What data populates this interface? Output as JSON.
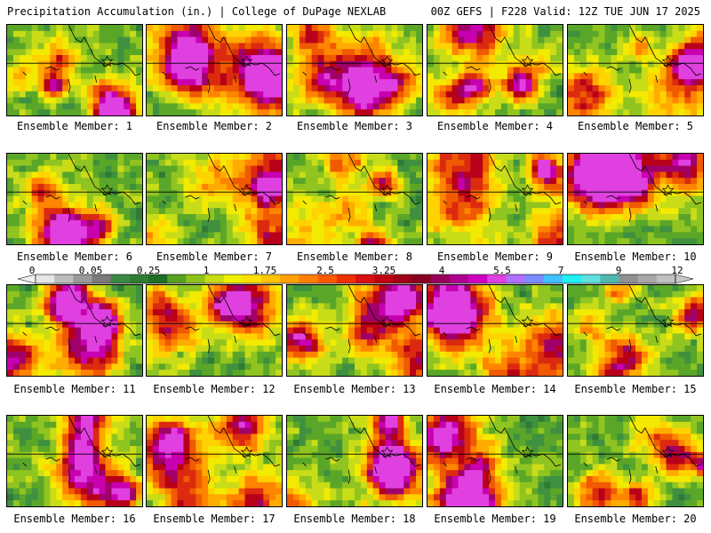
{
  "header": {
    "left": "Precipitation Accumulation (in.) | College of DuPage NEXLAB",
    "right": "00Z GEFS | F228 Valid: 12Z TUE JUN 17 2025"
  },
  "colorbar": {
    "labels": [
      "0",
      "0.05",
      "0.25",
      "1",
      "1.75",
      "2.5",
      "3.25",
      "4",
      "5.5",
      "7",
      "9",
      "12"
    ],
    "colors": [
      "#e6e6e6",
      "#bdbdbd",
      "#9a9a9a",
      "#7a7a7a",
      "#3a8a45",
      "#2e7d33",
      "#1f6e26",
      "#5aa020",
      "#8ec21a",
      "#c8dc14",
      "#f0f000",
      "#ffe000",
      "#ffc400",
      "#ffa200",
      "#ff8000",
      "#ff5a00",
      "#f03000",
      "#d81010",
      "#c00010",
      "#a00018",
      "#880020",
      "#98005a",
      "#b00090",
      "#d000c0",
      "#e040e0",
      "#b070ff",
      "#7a8cff",
      "#40c0ff",
      "#20f0f0",
      "#60e0e0",
      "#50b8b0",
      "#909090",
      "#a8a8a8",
      "#c0c0c0"
    ]
  },
  "members": [
    {
      "label": "Ensemble Member: 1"
    },
    {
      "label": "Ensemble Member: 2"
    },
    {
      "label": "Ensemble Member: 3"
    },
    {
      "label": "Ensemble Member: 4"
    },
    {
      "label": "Ensemble Member: 5"
    },
    {
      "label": "Ensemble Member: 6"
    },
    {
      "label": "Ensemble Member: 7"
    },
    {
      "label": "Ensemble Member: 8"
    },
    {
      "label": "Ensemble Member: 9"
    },
    {
      "label": "Ensemble Member: 10"
    },
    {
      "label": "Ensemble Member: 11"
    },
    {
      "label": "Ensemble Member: 12"
    },
    {
      "label": "Ensemble Member: 13"
    },
    {
      "label": "Ensemble Member: 14"
    },
    {
      "label": "Ensemble Member: 15"
    },
    {
      "label": "Ensemble Member: 16"
    },
    {
      "label": "Ensemble Member: 17"
    },
    {
      "label": "Ensemble Member: 18"
    },
    {
      "label": "Ensemble Member: 19"
    },
    {
      "label": "Ensemble Member: 20"
    }
  ]
}
